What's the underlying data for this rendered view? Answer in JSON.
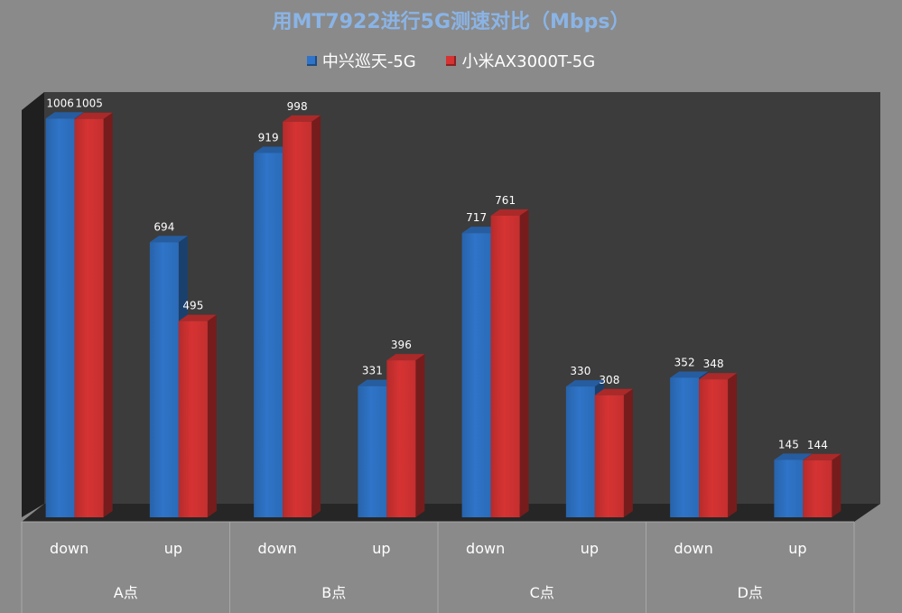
{
  "chart_data": {
    "type": "bar",
    "title": "用MT7922进行5G测速对比（Mbps）",
    "groups": [
      "A点",
      "B点",
      "C点",
      "D点"
    ],
    "categories": [
      "down",
      "up",
      "down",
      "up",
      "down",
      "up",
      "down",
      "up"
    ],
    "series": [
      {
        "name": "中兴巡天-5G",
        "color": "#2f74c8",
        "values": [
          1006,
          694,
          919,
          331,
          717,
          330,
          352,
          145
        ]
      },
      {
        "name": "小米AX3000T-5G",
        "color": "#d63333",
        "values": [
          1005,
          495,
          998,
          396,
          761,
          308,
          348,
          144
        ]
      }
    ],
    "ylim": [
      0,
      1100
    ],
    "legend_position": "top-center",
    "grid": false
  }
}
